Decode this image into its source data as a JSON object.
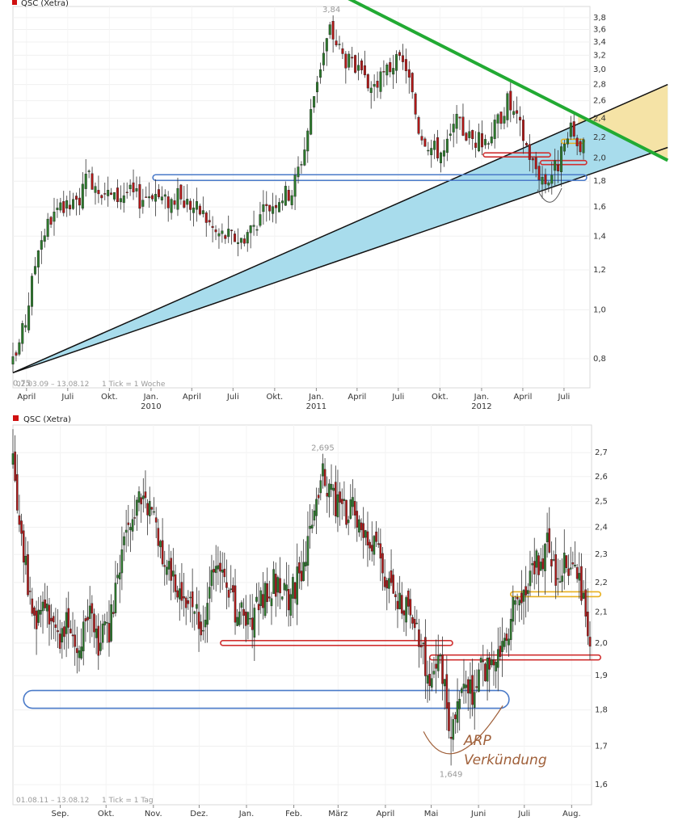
{
  "chart_data": [
    {
      "type": "candlestick",
      "title": "QSC (Xetra)",
      "title_marker_color": "#d01010",
      "footer_range": "02.03.09 – 13.08.12",
      "footer_tick": "1 Tick = 1 Woche",
      "y_scale": "log",
      "ylim": [
        0.7,
        4.0
      ],
      "y_ticks": [
        {
          "v": 3.8,
          "label": "3,8"
        },
        {
          "v": 3.6,
          "label": "3,6"
        },
        {
          "v": 3.4,
          "label": "3,4"
        },
        {
          "v": 3.2,
          "label": "3,2"
        },
        {
          "v": 3.0,
          "label": "3,0"
        },
        {
          "v": 2.8,
          "label": "2,8"
        },
        {
          "v": 2.6,
          "label": "2,6"
        },
        {
          "v": 2.4,
          "label": "2,4"
        },
        {
          "v": 2.2,
          "label": "2,2"
        },
        {
          "v": 2.0,
          "label": "2,0"
        },
        {
          "v": 1.8,
          "label": "1,8"
        },
        {
          "v": 1.6,
          "label": "1,6"
        },
        {
          "v": 1.4,
          "label": "1,4"
        },
        {
          "v": 1.2,
          "label": "1,2"
        },
        {
          "v": 1.0,
          "label": "1,0"
        },
        {
          "v": 0.8,
          "label": "0,8"
        }
      ],
      "x_range": [
        "2009-03-02",
        "2012-08-13"
      ],
      "x_ticks": [
        {
          "date": "2009-04-01",
          "label": "April",
          "year": ""
        },
        {
          "date": "2009-07-01",
          "label": "Juli",
          "year": ""
        },
        {
          "date": "2009-10-01",
          "label": "Okt.",
          "year": ""
        },
        {
          "date": "2010-01-01",
          "label": "Jan.",
          "year": "2010"
        },
        {
          "date": "2010-04-01",
          "label": "April",
          "year": ""
        },
        {
          "date": "2010-07-01",
          "label": "Juli",
          "year": ""
        },
        {
          "date": "2010-10-01",
          "label": "Okt.",
          "year": ""
        },
        {
          "date": "2011-01-01",
          "label": "Jan.",
          "year": "2011"
        },
        {
          "date": "2011-04-01",
          "label": "April",
          "year": ""
        },
        {
          "date": "2011-07-01",
          "label": "Juli",
          "year": ""
        },
        {
          "date": "2011-10-01",
          "label": "Okt.",
          "year": ""
        },
        {
          "date": "2012-01-01",
          "label": "Jan.",
          "year": "2012"
        },
        {
          "date": "2012-04-01",
          "label": "April",
          "year": ""
        },
        {
          "date": "2012-07-01",
          "label": "Juli",
          "year": ""
        }
      ],
      "close_path": [
        [
          "2009-03-02",
          0.78
        ],
        [
          "2009-03-30",
          0.95
        ],
        [
          "2009-04-27",
          1.35
        ],
        [
          "2009-05-25",
          1.52
        ],
        [
          "2009-06-22",
          1.58
        ],
        [
          "2009-07-20",
          1.62
        ],
        [
          "2009-08-17",
          1.84
        ],
        [
          "2009-09-14",
          1.74
        ],
        [
          "2009-10-12",
          1.66
        ],
        [
          "2009-11-09",
          1.72
        ],
        [
          "2009-12-07",
          1.66
        ],
        [
          "2010-01-04",
          1.72
        ],
        [
          "2010-02-01",
          1.64
        ],
        [
          "2010-03-01",
          1.67
        ],
        [
          "2010-03-29",
          1.62
        ],
        [
          "2010-04-26",
          1.55
        ],
        [
          "2010-05-24",
          1.42
        ],
        [
          "2010-06-21",
          1.4
        ],
        [
          "2010-07-19",
          1.38
        ],
        [
          "2010-08-16",
          1.48
        ],
        [
          "2010-09-13",
          1.58
        ],
        [
          "2010-10-11",
          1.68
        ],
        [
          "2010-11-08",
          1.72
        ],
        [
          "2010-12-06",
          2.1
        ],
        [
          "2011-01-03",
          2.9
        ],
        [
          "2011-01-31",
          3.6
        ],
        [
          "2011-02-28",
          3.2
        ],
        [
          "2011-03-28",
          3.0
        ],
        [
          "2011-04-25",
          2.75
        ],
        [
          "2011-05-23",
          2.85
        ],
        [
          "2011-06-20",
          3.1
        ],
        [
          "2011-07-18",
          3.05
        ],
        [
          "2011-08-15",
          2.3
        ],
        [
          "2011-09-12",
          2.1
        ],
        [
          "2011-10-10",
          2.05
        ],
        [
          "2011-11-07",
          2.35
        ],
        [
          "2011-12-05",
          2.2
        ],
        [
          "2012-01-02",
          2.15
        ],
        [
          "2012-01-30",
          2.3
        ],
        [
          "2012-02-27",
          2.6
        ],
        [
          "2012-03-26",
          2.3
        ],
        [
          "2012-04-23",
          1.95
        ],
        [
          "2012-05-21",
          1.8
        ],
        [
          "2012-06-18",
          1.95
        ],
        [
          "2012-07-16",
          2.25
        ],
        [
          "2012-08-13",
          2.1
        ]
      ],
      "annotations": {
        "high": {
          "date": "2011-02-07",
          "value": 3.84,
          "label": "3,84"
        },
        "low": {
          "date": "2009-03-02",
          "value": 0.75,
          "label": "0,75"
        },
        "resistance_line": {
          "color": "#22aa33",
          "from": [
            "2010-10-05",
            4.9
          ],
          "to": [
            "2013-02-15",
            1.98
          ]
        },
        "support_fan": {
          "color": "#a8dcec",
          "apex": [
            "2009-03-02",
            0.75
          ],
          "upper_end": [
            "2013-02-15",
            2.8
          ],
          "lower_end": [
            "2013-02-15",
            2.1
          ]
        },
        "yellow_wedge": {
          "color": "#f5e3a6",
          "from_date": "2012-08-01"
        },
        "support_zone_blue": {
          "color": "#4a7ac8",
          "from_date": "2010-01-05",
          "to_date": "2012-08-20",
          "value": 1.83
        },
        "red_zones": [
          {
            "color": "#d03030",
            "from_date": "2012-01-05",
            "to_date": "2012-06-01",
            "value": 2.03
          },
          {
            "color": "#d03030",
            "from_date": "2012-05-10",
            "to_date": "2012-08-20",
            "value": 1.96
          }
        ],
        "yellow_zone": {
          "color": "#e8b020",
          "from_date": "2012-06-25",
          "to_date": "2012-08-15",
          "value": 2.16
        }
      }
    },
    {
      "type": "candlestick",
      "title": "QSC (Xetra)",
      "title_marker_color": "#d01010",
      "footer_range": "01.08.11 – 13.08.12",
      "footer_tick": "1 Tick = 1 Tag",
      "y_scale": "log",
      "ylim": [
        1.55,
        2.82
      ],
      "y_ticks": [
        {
          "v": 2.7,
          "label": "2,7"
        },
        {
          "v": 2.6,
          "label": "2,6"
        },
        {
          "v": 2.5,
          "label": "2,5"
        },
        {
          "v": 2.4,
          "label": "2,4"
        },
        {
          "v": 2.3,
          "label": "2,3"
        },
        {
          "v": 2.2,
          "label": "2,2"
        },
        {
          "v": 2.1,
          "label": "2,1"
        },
        {
          "v": 2.0,
          "label": "2,0"
        },
        {
          "v": 1.9,
          "label": "1,9"
        },
        {
          "v": 1.8,
          "label": "1,8"
        },
        {
          "v": 1.7,
          "label": "1,7"
        },
        {
          "v": 1.6,
          "label": "1,6"
        }
      ],
      "x_range": [
        "2011-08-01",
        "2012-08-13"
      ],
      "x_ticks": [
        {
          "date": "2011-09-01",
          "label": "Sep."
        },
        {
          "date": "2011-10-01",
          "label": "Okt."
        },
        {
          "date": "2011-11-01",
          "label": "Nov."
        },
        {
          "date": "2011-12-01",
          "label": "Dez."
        },
        {
          "date": "2012-01-01",
          "label": "Jan."
        },
        {
          "date": "2012-02-01",
          "label": "Feb."
        },
        {
          "date": "2012-03-01",
          "label": "März"
        },
        {
          "date": "2012-04-01",
          "label": "April"
        },
        {
          "date": "2012-05-01",
          "label": "Mai"
        },
        {
          "date": "2012-06-01",
          "label": "Juni"
        },
        {
          "date": "2012-07-01",
          "label": "Juli"
        },
        {
          "date": "2012-08-01",
          "label": "Aug."
        }
      ],
      "close_path": [
        [
          "2011-08-01",
          2.65
        ],
        [
          "2011-08-08",
          2.3
        ],
        [
          "2011-08-15",
          2.05
        ],
        [
          "2011-08-22",
          2.15
        ],
        [
          "2011-08-29",
          2.0
        ],
        [
          "2011-09-05",
          2.08
        ],
        [
          "2011-09-12",
          1.98
        ],
        [
          "2011-09-19",
          2.1
        ],
        [
          "2011-09-26",
          2.0
        ],
        [
          "2011-10-03",
          2.05
        ],
        [
          "2011-10-10",
          2.25
        ],
        [
          "2011-10-17",
          2.4
        ],
        [
          "2011-10-24",
          2.5
        ],
        [
          "2011-10-31",
          2.45
        ],
        [
          "2011-11-07",
          2.3
        ],
        [
          "2011-11-14",
          2.2
        ],
        [
          "2011-11-21",
          2.15
        ],
        [
          "2011-11-28",
          2.1
        ],
        [
          "2011-12-05",
          2.05
        ],
        [
          "2011-12-12",
          2.3
        ],
        [
          "2011-12-19",
          2.15
        ],
        [
          "2011-12-26",
          2.1
        ],
        [
          "2012-01-02",
          2.05
        ],
        [
          "2012-01-09",
          2.12
        ],
        [
          "2012-01-16",
          2.2
        ],
        [
          "2012-01-23",
          2.18
        ],
        [
          "2012-01-30",
          2.15
        ],
        [
          "2012-02-06",
          2.25
        ],
        [
          "2012-02-13",
          2.4
        ],
        [
          "2012-02-20",
          2.62
        ],
        [
          "2012-02-27",
          2.5
        ],
        [
          "2012-03-05",
          2.45
        ],
        [
          "2012-03-12",
          2.48
        ],
        [
          "2012-03-19",
          2.35
        ],
        [
          "2012-03-26",
          2.3
        ],
        [
          "2012-04-02",
          2.2
        ],
        [
          "2012-04-09",
          2.15
        ],
        [
          "2012-04-16",
          2.1
        ],
        [
          "2012-04-23",
          2.0
        ],
        [
          "2012-04-30",
          1.9
        ],
        [
          "2012-05-07",
          1.95
        ],
        [
          "2012-05-14",
          1.7
        ],
        [
          "2012-05-21",
          1.88
        ],
        [
          "2012-05-28",
          1.85
        ],
        [
          "2012-06-04",
          1.92
        ],
        [
          "2012-06-11",
          1.9
        ],
        [
          "2012-06-18",
          2.02
        ],
        [
          "2012-06-25",
          2.12
        ],
        [
          "2012-07-02",
          2.2
        ],
        [
          "2012-07-09",
          2.26
        ],
        [
          "2012-07-16",
          2.33
        ],
        [
          "2012-07-23",
          2.22
        ],
        [
          "2012-07-30",
          2.28
        ],
        [
          "2012-08-06",
          2.2
        ],
        [
          "2012-08-13",
          2.02
        ]
      ],
      "annotations": {
        "high": {
          "date": "2012-02-20",
          "value": 2.695,
          "label": "2,695"
        },
        "low": {
          "date": "2012-05-14",
          "value": 1.649,
          "label": "1,649"
        },
        "text": [
          "ARP",
          "Verkündung"
        ],
        "text_color": "#a0603a",
        "support_zone_blue": {
          "color": "#4a7ac8",
          "from_date": "2011-08-08",
          "to_date": "2012-06-21",
          "value": 1.83
        },
        "red_zones": [
          {
            "color": "#d03030",
            "from_date": "2011-12-15",
            "to_date": "2012-05-15",
            "value": 2.0
          },
          {
            "color": "#d03030",
            "from_date": "2012-04-30",
            "to_date": "2012-08-20",
            "value": 1.955
          }
        ],
        "yellow_zone": {
          "color": "#e8b020",
          "from_date": "2012-06-22",
          "to_date": "2012-08-20",
          "value": 2.16
        }
      }
    }
  ]
}
